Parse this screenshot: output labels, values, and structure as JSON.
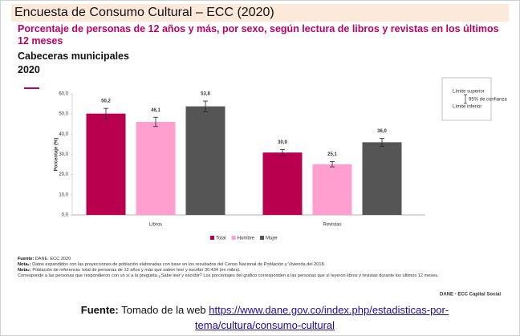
{
  "header": {
    "title": "Encuesta de Consumo Cultural – ECC (2020)",
    "subtitle": "Porcentaje de personas de 12 años y más, por sexo, según lectura de libros y revistas en los últimos 12 meses",
    "scope": "Cabeceras municipales",
    "year": "2020"
  },
  "chart_data": {
    "type": "bar",
    "categories": [
      "Libros",
      "Revistas"
    ],
    "series": [
      {
        "name": "Total",
        "color": "#b8004f",
        "values": [
          50.2,
          30.9
        ],
        "value_labels": [
          "50,2",
          "30,9"
        ],
        "errors": [
          2.6,
          1.5
        ]
      },
      {
        "name": "Hombre",
        "color": "#ff9fd0",
        "values": [
          46.1,
          25.1
        ],
        "value_labels": [
          "46,1",
          "25,1"
        ],
        "errors": [
          2.3,
          1.3
        ]
      },
      {
        "name": "Mujer",
        "color": "#555555",
        "values": [
          53.8,
          36.0
        ],
        "value_labels": [
          "53,8",
          "36,0"
        ],
        "errors": [
          2.6,
          1.9
        ]
      }
    ],
    "y_label": "Porcentaje (%)",
    "ylim": [
      0,
      60
    ],
    "yticks": [
      {
        "value": 0,
        "label": "0,0"
      },
      {
        "value": 10,
        "label": "10,0"
      },
      {
        "value": 20,
        "label": "20,0"
      },
      {
        "value": 30,
        "label": "30,0"
      },
      {
        "value": 40,
        "label": "40,0"
      },
      {
        "value": 50,
        "label": "50,0"
      },
      {
        "value": 60,
        "label": "60,0"
      }
    ],
    "grid": false,
    "legend": "bottom",
    "error_legend": {
      "upper": "Límite superior",
      "ci": "95% de confianza",
      "lower": "Límite inferior"
    },
    "credit": "DANE - ECC Capital Social"
  },
  "notes": [
    {
      "label": "Fuente:",
      "text": "DANE. ECC 2020"
    },
    {
      "label": "Nota₁:",
      "text": "Datos expandidos con las proyecciones de población elaboradas con base en los resultados del Censo Nacional de Población y Vivienda del 2018."
    },
    {
      "label": "Nota₂:",
      "text": "Población de referencia: total de personas de 12 años y más que saben leer y escribir 30.434 (en miles)."
    },
    {
      "label": "",
      "text": "Corresponde a las personas que respondieron con un sí a la pregunta ¿Sabe leer y escribir? Los porcentajes del gráfico corresponden a las personas que sí leyeron libros y revistas durante los últimos 12 meses."
    }
  ],
  "source": {
    "label": "Fuente:",
    "text": "Tomado de la web",
    "link": "https://www.dane.gov.co/index.php/estadisticas-por-tema/cultura/consumo-cultural"
  }
}
